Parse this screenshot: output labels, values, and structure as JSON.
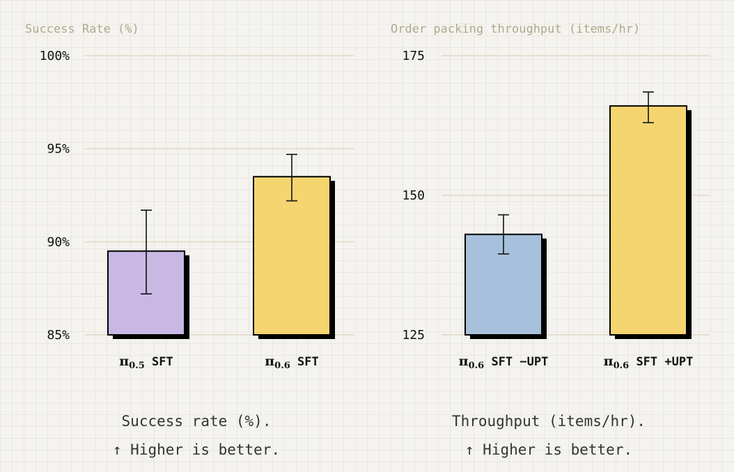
{
  "colors": {
    "purple": "#c8b8e3",
    "yellow": "#f5d570",
    "blue": "#a7c1dc",
    "grid": "#ddd8c7",
    "title": "#b0a88e"
  },
  "chart_data": [
    {
      "type": "bar",
      "title": "Success Rate (%)",
      "ylim": [
        85,
        100
      ],
      "yticks": [
        85,
        90,
        95,
        100
      ],
      "ytick_labels": [
        "85%",
        "90%",
        "95%",
        "100%"
      ],
      "categories": [
        {
          "pi": "π",
          "sub": "0.5",
          "rest": " SFT"
        },
        {
          "pi": "π",
          "sub": "0.6",
          "rest": " SFT"
        }
      ],
      "values": [
        89.5,
        93.5
      ],
      "errors": [
        [
          87.2,
          91.7
        ],
        [
          92.2,
          94.7
        ]
      ],
      "colors": [
        "#c8b8e3",
        "#f5d570"
      ],
      "caption_line1": "Success rate (%).",
      "caption_line2": "↑ Higher is better."
    },
    {
      "type": "bar",
      "title": "Order packing throughput (items/hr)",
      "ylim": [
        125,
        175
      ],
      "yticks": [
        125,
        150,
        175
      ],
      "ytick_labels": [
        "125",
        "150",
        "175"
      ],
      "categories": [
        {
          "pi": "π",
          "sub": "0.6",
          "rest": " SFT −UPT"
        },
        {
          "pi": "π",
          "sub": "0.6",
          "rest": " SFT +UPT"
        }
      ],
      "values": [
        143,
        166
      ],
      "errors": [
        [
          139.5,
          146.5
        ],
        [
          163,
          168.5
        ]
      ],
      "colors": [
        "#a7c1dc",
        "#f5d570"
      ],
      "caption_line1": "Throughput (items/hr).",
      "caption_line2": "↑ Higher is better."
    }
  ]
}
